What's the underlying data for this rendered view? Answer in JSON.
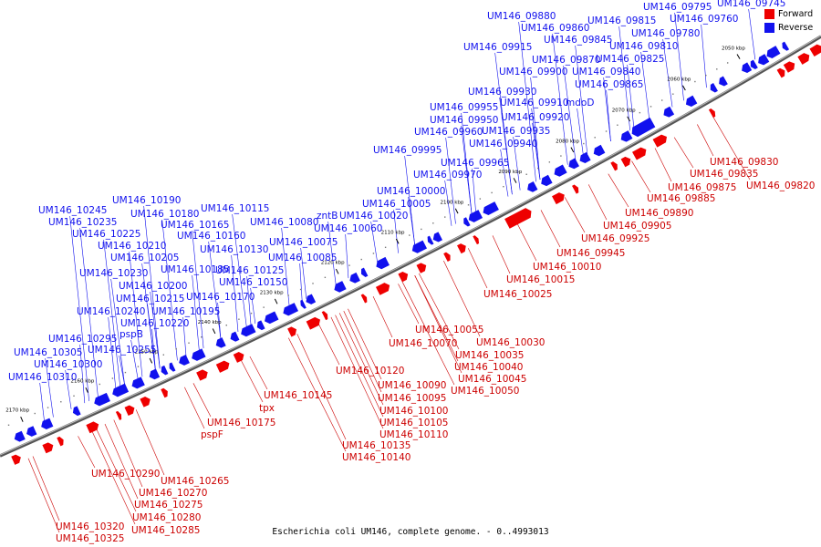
{
  "caption": "Escherichia coli UM146, complete genome. - 0..4993013",
  "legend": [
    {
      "label": "Forward",
      "color": "#ee0000"
    },
    {
      "label": "Reverse",
      "color": "#1111ee"
    }
  ],
  "colors": {
    "forward": "#ee0000",
    "reverse": "#1111ee",
    "backbone": "#555555"
  },
  "ticks": [
    "2050 kbp",
    "2060 kbp",
    "2070 kbp",
    "2080 kbp",
    "2090 kbp",
    "2100 kbp",
    "2110 kbp",
    "2120 kbp",
    "2130 kbp",
    "2140 kbp",
    "2150 kbp",
    "2160 kbp",
    "2170 kbp"
  ],
  "reverse_labels": [
    "UM146_09745",
    "UM146_09795",
    "UM146_09760",
    "UM146_09880",
    "UM146_09815",
    "UM146_09860",
    "UM146_09780",
    "UM146_09845",
    "UM146_09915",
    "UM146_09810",
    "UM146_09870",
    "UM146_09825",
    "UM146_09900",
    "UM146_09840",
    "UM146_09865",
    "UM146_09930",
    "UM146_09910",
    "mdoD",
    "UM146_09955",
    "UM146_09950",
    "UM146_09920",
    "UM146_09960",
    "UM146_09935",
    "UM146_09940",
    "UM146_09995",
    "UM146_09965",
    "UM146_09970",
    "UM146_10000",
    "UM146_10005",
    "UM146_10190",
    "UM146_10245",
    "UM146_10180",
    "UM146_10115",
    "zntB",
    "UM146_10020",
    "UM146_10235",
    "UM146_10165",
    "UM146_10080",
    "UM146_10060",
    "UM146_10225",
    "UM146_10160",
    "UM146_10210",
    "UM146_10130",
    "UM146_10075",
    "UM146_10205",
    "UM146_10085",
    "UM146_10185",
    "UM146_10125",
    "UM146_10230",
    "UM146_10150",
    "UM146_10200",
    "UM146_10215",
    "UM146_10170",
    "UM146_10240",
    "UM146_10195",
    "UM146_10220",
    "UM146_10295",
    "pspB",
    "UM146_10255",
    "UM146_10305",
    "UM146_10300",
    "UM146_10310"
  ],
  "forward_labels": [
    "UM146_09830",
    "UM146_09835",
    "UM146_09820",
    "UM146_09875",
    "UM146_09885",
    "UM146_09890",
    "UM146_09905",
    "UM146_09925",
    "UM146_09945",
    "UM146_10010",
    "UM146_10015",
    "UM146_10025",
    "UM146_10055",
    "UM146_10030",
    "UM146_10070",
    "UM146_10035",
    "UM146_10040",
    "UM146_10045",
    "UM146_10050",
    "UM146_10120",
    "UM146_10090",
    "UM146_10095",
    "UM146_10145",
    "UM146_10100",
    "tpx",
    "UM146_10105",
    "UM146_10175",
    "UM146_10110",
    "pspF",
    "UM146_10135",
    "UM146_10140",
    "UM146_10290",
    "UM146_10265",
    "UM146_10270",
    "UM146_10275",
    "UM146_10280",
    "UM146_10285",
    "UM146_10320",
    "UM146_10325"
  ]
}
